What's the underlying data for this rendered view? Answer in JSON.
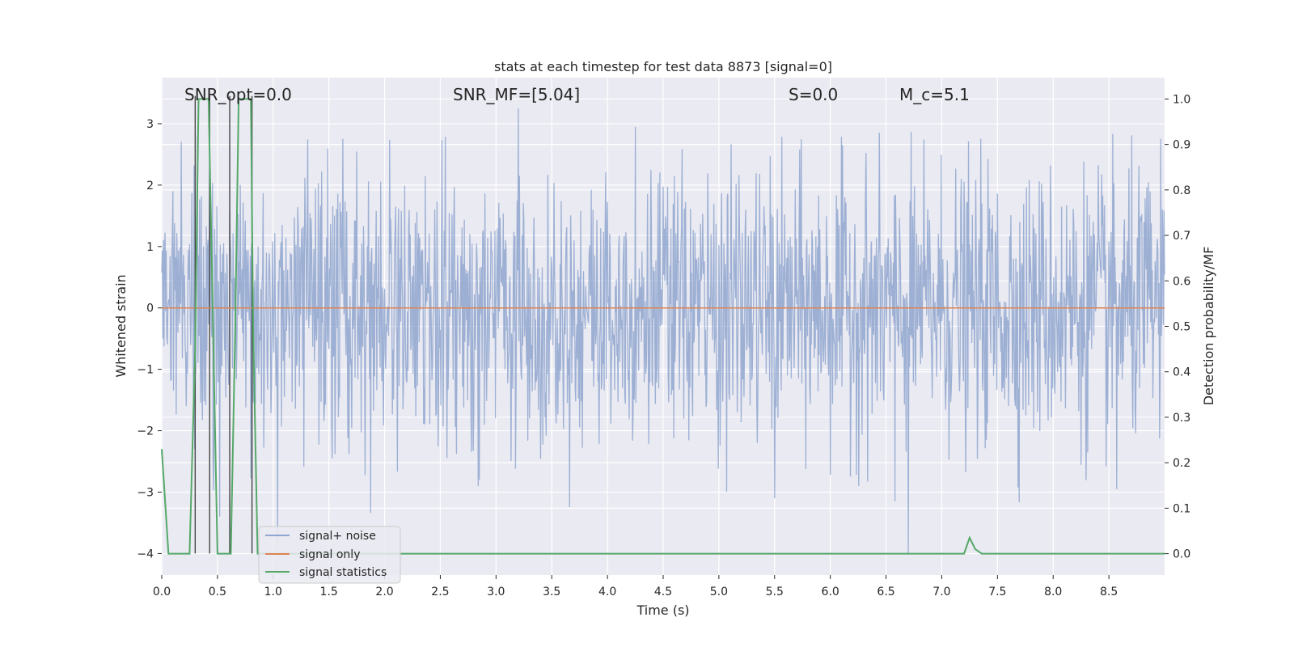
{
  "chart_data": {
    "type": "line",
    "title": "stats at each timestep for test data 8873 [signal=0]",
    "xlabel": "Time (s)",
    "ylabel": "Whitened strain",
    "ylabel_right": "Detection probability/MF",
    "xlim": [
      0.0,
      9.0
    ],
    "ylim": [
      -4.35,
      3.75
    ],
    "ylim_right": [
      -0.047,
      1.047
    ],
    "x_ticks": [
      0.0,
      0.5,
      1.0,
      1.5,
      2.0,
      2.5,
      3.0,
      3.5,
      4.0,
      4.5,
      5.0,
      5.5,
      6.0,
      6.5,
      7.0,
      7.5,
      8.0,
      8.5
    ],
    "x_tick_labels": [
      "0.0",
      "0.5",
      "1.0",
      "1.5",
      "2.0",
      "2.5",
      "3.0",
      "3.5",
      "4.0",
      "4.5",
      "5.0",
      "5.5",
      "6.0",
      "6.5",
      "7.0",
      "7.5",
      "8.0",
      "8.5"
    ],
    "y_ticks": [
      3,
      2,
      1,
      0,
      -1,
      -2,
      -3,
      -4
    ],
    "y_tick_labels": [
      "3",
      "2",
      "1",
      "0",
      "−1",
      "−2",
      "−3",
      "−4"
    ],
    "y_right_ticks": [
      1.0,
      0.9,
      0.8,
      0.7,
      0.6,
      0.5,
      0.4,
      0.3,
      0.2,
      0.1,
      0.0
    ],
    "y_right_tick_labels": [
      "1.0",
      "0.9",
      "0.8",
      "0.7",
      "0.6",
      "0.5",
      "0.4",
      "0.3",
      "0.2",
      "0.1",
      "0.0"
    ],
    "grid": true,
    "legend_position": "lower-left",
    "annotations": [
      {
        "id": "snr-opt",
        "text": "SNR_opt=0.0"
      },
      {
        "id": "snr-mf",
        "text": "SNR_MF=[5.04]"
      },
      {
        "id": "s",
        "text": "S=0.0"
      },
      {
        "id": "mc",
        "text": "M_c=5.1"
      }
    ],
    "vertical_lines_x": [
      0.3,
      0.43,
      0.61,
      0.81
    ],
    "series": [
      {
        "name": "signal+ noise",
        "color": "#8fa6cf",
        "axis": "left",
        "kind": "noise",
        "sample_rate_hz": 200,
        "envelope": {
          "typical_abs": 1.1,
          "peak_high": 3.3,
          "peak_low": -4.0
        },
        "notable_extremes": [
          {
            "x": 0.43,
            "y": 2.9
          },
          {
            "x": 0.52,
            "y": -3.4
          },
          {
            "x": 1.04,
            "y": -3.8
          },
          {
            "x": 2.85,
            "y": -2.8
          },
          {
            "x": 3.2,
            "y": 3.25
          },
          {
            "x": 4.25,
            "y": 2.95
          },
          {
            "x": 5.5,
            "y": -3.1
          },
          {
            "x": 6.58,
            "y": -3.15
          },
          {
            "x": 6.7,
            "y": -4.0
          },
          {
            "x": 8.57,
            "y": -2.95
          }
        ]
      },
      {
        "name": "signal only",
        "color": "#dd8452",
        "axis": "left",
        "x": [
          0.0,
          9.0
        ],
        "y": [
          0.0,
          0.0
        ]
      },
      {
        "name": "signal statistics",
        "color": "#55a868",
        "axis": "right",
        "x": [
          0.0,
          0.06,
          0.1,
          0.15,
          0.2,
          0.25,
          0.3,
          0.33,
          0.38,
          0.42,
          0.46,
          0.5,
          0.53,
          0.58,
          0.62,
          0.66,
          0.69,
          0.71,
          0.75,
          0.8,
          0.82,
          0.86,
          0.9,
          0.95,
          1.0,
          2.0,
          3.0,
          4.0,
          5.0,
          6.0,
          7.0,
          7.2,
          7.25,
          7.3,
          7.36,
          7.45,
          8.0,
          9.0
        ],
        "y": [
          0.23,
          0.0,
          0.0,
          0.0,
          0.0,
          0.0,
          0.45,
          1.0,
          1.0,
          1.0,
          0.5,
          0.0,
          0.0,
          0.0,
          0.0,
          0.5,
          1.0,
          1.0,
          1.0,
          1.0,
          0.5,
          0.0,
          0.0,
          0.0,
          0.0,
          0.0,
          0.0,
          0.0,
          0.0,
          0.0,
          0.0,
          0.0,
          0.035,
          0.01,
          0.0,
          0.0,
          0.0,
          0.0
        ]
      }
    ]
  }
}
